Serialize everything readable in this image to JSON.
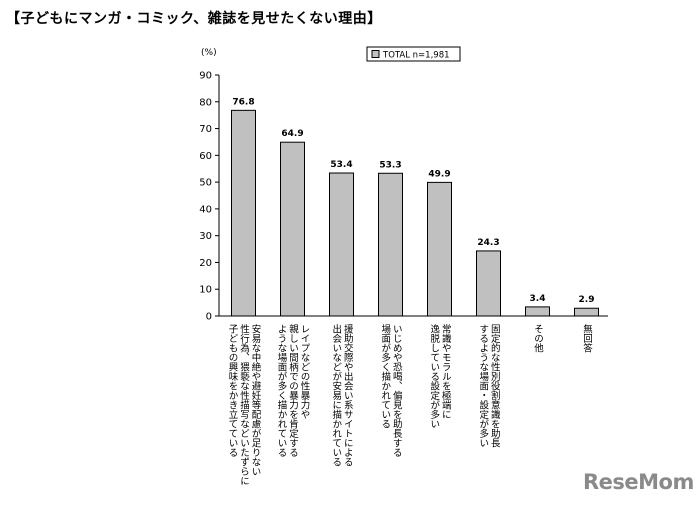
{
  "title": "【子どもにマンガ・コミック、雑誌を見せたくない理由】",
  "brand": "ReseMom",
  "chart_data": {
    "type": "bar",
    "unit_label": "(%)",
    "ylim": [
      0,
      90
    ],
    "yticks": [
      0,
      10,
      20,
      30,
      40,
      50,
      60,
      70,
      80,
      90
    ],
    "grid": false,
    "legend": {
      "position": "top-right",
      "entries": [
        "TOTAL n=1,981"
      ]
    },
    "categories": [
      "安易な中絶や避妊等配慮が足りない性行為、猥褻な性描写などいたずらに子どもの興味をかき立てている",
      "レイプなどの性暴力や親しい間柄での暴力を肯定するような場面が多く描かれている",
      "援助交際や出会い系サイトによる出会いなどが安易に描かれている",
      "いじめや恐喝、偏見を助長する場面が多く描かれている",
      "常識やモラルを極端に逸脱している設定が多い",
      "固定的な性別役割意識を助長するような場面・設定が多い",
      "その他",
      "無回答"
    ],
    "category_lines": [
      [
        "安易な中絶や避妊等配慮が足りない",
        "性行為、猥褻な性描写などいたずらに",
        "子どもの興味をかき立てている"
      ],
      [
        "レイプなどの性暴力や",
        "親しい間柄での暴力を肯定する",
        "ような場面が多く描かれている"
      ],
      [
        "援助交際や出会い系サイトによる",
        "出会いなどが安易に描かれている"
      ],
      [
        "いじめや恐喝、偏見を助長する",
        "場面が多く描かれている"
      ],
      [
        "常識やモラルを極端に",
        "逸脱している設定が多い"
      ],
      [
        "固定的な性別役割意識を助長",
        "するような場面・設定が多い"
      ],
      [
        "その他"
      ],
      [
        "無回答"
      ]
    ],
    "series": [
      {
        "name": "TOTAL n=1,981",
        "values": [
          76.8,
          64.9,
          53.4,
          53.3,
          49.9,
          24.3,
          3.4,
          2.9
        ],
        "labels": [
          "76.8",
          "64.9",
          "53.4",
          "53.3",
          "49.9",
          "24.3",
          "3.4",
          "2.9"
        ],
        "color": "#c0c0c0"
      }
    ]
  }
}
